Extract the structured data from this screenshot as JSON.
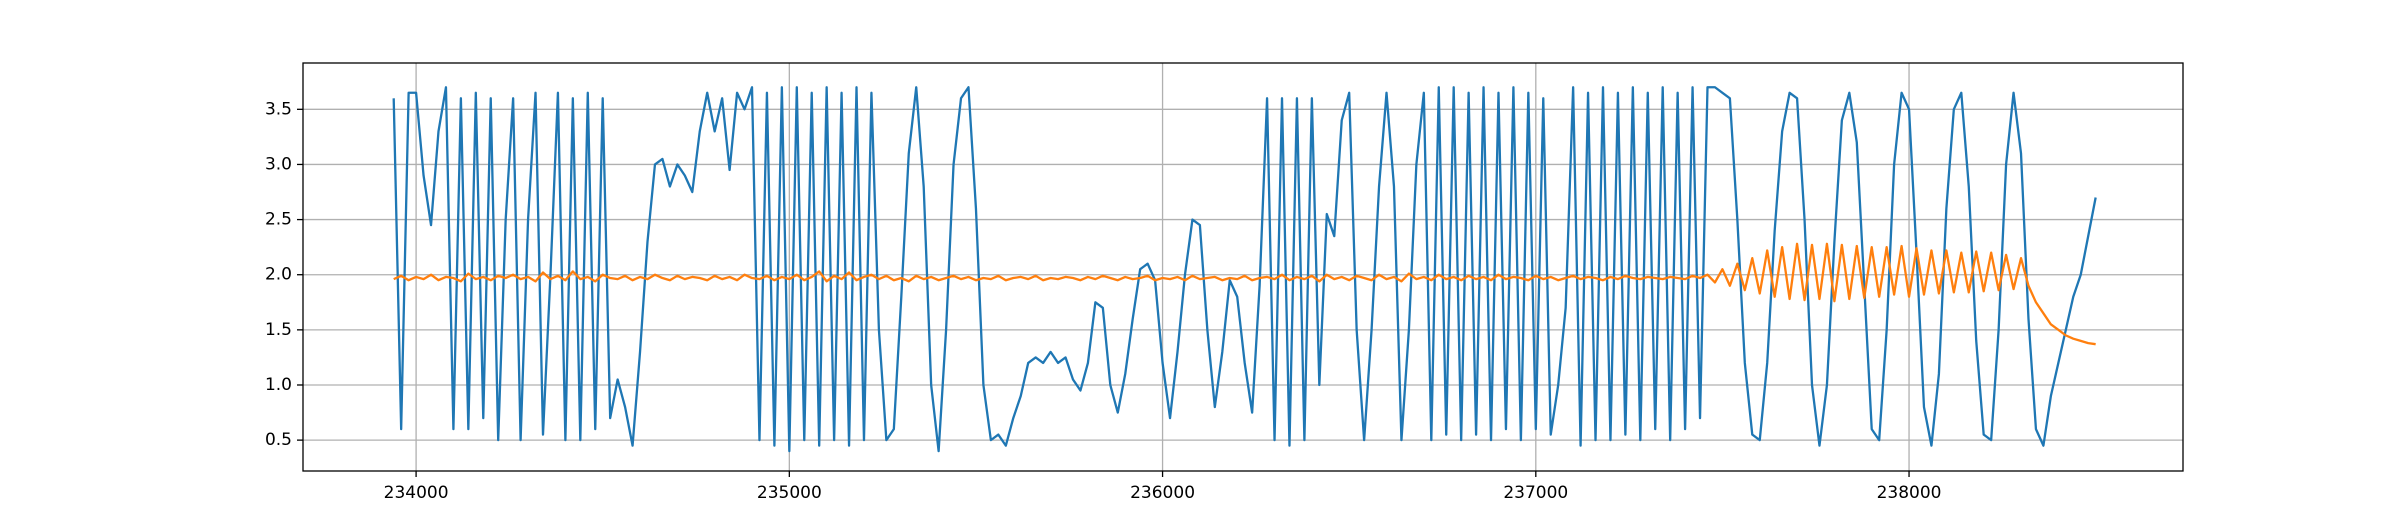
{
  "chart_data": {
    "type": "line",
    "x": [
      233940,
      233960,
      233980,
      234000,
      234020,
      234040,
      234060,
      234080,
      234100,
      234120,
      234140,
      234160,
      234180,
      234200,
      234220,
      234240,
      234260,
      234280,
      234300,
      234320,
      234340,
      234360,
      234380,
      234400,
      234420,
      234440,
      234460,
      234480,
      234500,
      234520,
      234540,
      234560,
      234580,
      234600,
      234620,
      234640,
      234660,
      234680,
      234700,
      234720,
      234740,
      234760,
      234780,
      234800,
      234820,
      234840,
      234860,
      234880,
      234900,
      234920,
      234940,
      234960,
      234980,
      235000,
      235020,
      235040,
      235060,
      235080,
      235100,
      235120,
      235140,
      235160,
      235180,
      235200,
      235220,
      235240,
      235260,
      235280,
      235300,
      235320,
      235340,
      235360,
      235380,
      235400,
      235420,
      235440,
      235460,
      235480,
      235500,
      235520,
      235540,
      235560,
      235580,
      235600,
      235620,
      235640,
      235660,
      235680,
      235700,
      235720,
      235740,
      235760,
      235780,
      235800,
      235820,
      235840,
      235860,
      235880,
      235900,
      235920,
      235940,
      235960,
      235980,
      236000,
      236020,
      236040,
      236060,
      236080,
      236100,
      236120,
      236140,
      236160,
      236180,
      236200,
      236220,
      236240,
      236260,
      236280,
      236300,
      236320,
      236340,
      236360,
      236380,
      236400,
      236420,
      236440,
      236460,
      236480,
      236500,
      236520,
      236540,
      236560,
      236580,
      236600,
      236620,
      236640,
      236660,
      236680,
      236700,
      236720,
      236740,
      236760,
      236780,
      236800,
      236820,
      236840,
      236860,
      236880,
      236900,
      236920,
      236940,
      236960,
      236980,
      237000,
      237020,
      237040,
      237060,
      237080,
      237100,
      237120,
      237140,
      237160,
      237180,
      237200,
      237220,
      237240,
      237260,
      237280,
      237300,
      237320,
      237340,
      237360,
      237380,
      237400,
      237420,
      237440,
      237460,
      237480,
      237500,
      237520,
      237540,
      237560,
      237580,
      237600,
      237620,
      237640,
      237660,
      237680,
      237700,
      237720,
      237740,
      237760,
      237780,
      237800,
      237820,
      237840,
      237860,
      237880,
      237900,
      237920,
      237940,
      237960,
      237980,
      238000,
      238020,
      238040,
      238060,
      238080,
      238100,
      238120,
      238140,
      238160,
      238180,
      238200,
      238220,
      238240,
      238260,
      238280,
      238300,
      238320,
      238340,
      238360,
      238380,
      238400,
      238420,
      238440,
      238460,
      238480,
      238500
    ],
    "series": [
      {
        "color": "#1f77b4",
        "values": [
          3.6,
          0.6,
          3.65,
          3.65,
          2.9,
          2.45,
          3.3,
          3.7,
          0.6,
          3.6,
          0.6,
          3.65,
          0.7,
          3.6,
          0.5,
          2.5,
          3.6,
          0.5,
          2.5,
          3.65,
          0.55,
          2.0,
          3.65,
          0.5,
          3.6,
          0.5,
          3.65,
          0.6,
          3.6,
          0.7,
          1.05,
          0.8,
          0.45,
          1.3,
          2.3,
          3.0,
          3.05,
          2.8,
          3.0,
          2.9,
          2.75,
          3.3,
          3.65,
          3.3,
          3.6,
          2.95,
          3.65,
          3.5,
          3.7,
          0.5,
          3.65,
          0.45,
          3.7,
          0.4,
          3.7,
          0.5,
          3.65,
          0.45,
          3.7,
          0.5,
          3.65,
          0.45,
          3.7,
          0.5,
          3.65,
          1.5,
          0.5,
          0.6,
          1.8,
          3.1,
          3.7,
          2.8,
          1.0,
          0.4,
          1.5,
          3.0,
          3.6,
          3.7,
          2.6,
          1.0,
          0.5,
          0.55,
          0.45,
          0.7,
          0.9,
          1.2,
          1.25,
          1.2,
          1.3,
          1.2,
          1.25,
          1.05,
          0.95,
          1.2,
          1.75,
          1.7,
          1.0,
          0.75,
          1.1,
          1.6,
          2.05,
          2.1,
          1.95,
          1.2,
          0.7,
          1.3,
          2.0,
          2.5,
          2.45,
          1.5,
          0.8,
          1.3,
          1.95,
          1.8,
          1.2,
          0.75,
          1.9,
          3.6,
          0.5,
          3.6,
          0.45,
          3.6,
          0.5,
          3.6,
          1.0,
          2.55,
          2.35,
          3.4,
          3.65,
          1.5,
          0.5,
          1.5,
          2.8,
          3.65,
          2.8,
          0.5,
          1.5,
          3.0,
          3.65,
          0.5,
          3.7,
          0.55,
          3.7,
          0.5,
          3.65,
          0.55,
          3.7,
          0.5,
          3.65,
          0.6,
          3.7,
          0.5,
          3.65,
          0.6,
          3.6,
          0.55,
          1.0,
          1.7,
          3.7,
          0.45,
          3.65,
          0.5,
          3.7,
          0.5,
          3.65,
          0.55,
          3.7,
          0.5,
          3.65,
          0.6,
          3.7,
          0.5,
          3.65,
          0.6,
          3.7,
          0.7,
          3.7,
          3.7,
          3.65,
          3.6,
          2.5,
          1.2,
          0.55,
          0.5,
          1.2,
          2.4,
          3.3,
          3.65,
          3.6,
          2.5,
          1.0,
          0.45,
          1.0,
          2.3,
          3.4,
          3.65,
          3.2,
          1.9,
          0.6,
          0.5,
          1.5,
          3.0,
          3.65,
          3.5,
          2.2,
          0.8,
          0.45,
          1.1,
          2.6,
          3.5,
          3.65,
          2.8,
          1.4,
          0.55,
          0.5,
          1.5,
          3.0,
          3.65,
          3.1,
          1.6,
          0.6,
          0.45,
          0.9,
          1.2,
          1.5,
          1.8,
          2.0,
          2.35,
          2.7
        ]
      },
      {
        "color": "#ff7f0e",
        "values": [
          1.96,
          1.99,
          1.95,
          1.98,
          1.96,
          2.0,
          1.95,
          1.98,
          1.97,
          1.94,
          2.01,
          1.96,
          1.98,
          1.95,
          1.99,
          1.97,
          2.0,
          1.96,
          1.98,
          1.94,
          2.02,
          1.96,
          1.99,
          1.95,
          2.03,
          1.96,
          1.98,
          1.94,
          2.0,
          1.97,
          1.96,
          1.99,
          1.95,
          1.98,
          1.96,
          2.0,
          1.97,
          1.95,
          1.99,
          1.96,
          1.98,
          1.97,
          1.95,
          1.99,
          1.96,
          1.98,
          1.95,
          2.0,
          1.97,
          1.96,
          1.99,
          1.95,
          1.98,
          1.96,
          2.0,
          1.95,
          1.98,
          2.03,
          1.94,
          1.99,
          1.96,
          2.02,
          1.95,
          1.98,
          2.0,
          1.96,
          1.99,
          1.95,
          1.97,
          1.94,
          1.99,
          1.96,
          1.98,
          1.95,
          1.97,
          1.99,
          1.96,
          1.98,
          1.95,
          1.97,
          1.96,
          1.99,
          1.95,
          1.97,
          1.98,
          1.96,
          1.99,
          1.95,
          1.97,
          1.96,
          1.98,
          1.97,
          1.95,
          1.98,
          1.96,
          1.99,
          1.97,
          1.95,
          1.98,
          1.96,
          1.97,
          1.99,
          1.95,
          1.97,
          1.96,
          1.98,
          1.95,
          1.99,
          1.96,
          1.97,
          1.98,
          1.95,
          1.97,
          1.96,
          1.99,
          1.95,
          1.97,
          1.98,
          1.96,
          2.0,
          1.95,
          1.98,
          1.96,
          1.99,
          1.94,
          2.0,
          1.96,
          1.98,
          1.95,
          1.99,
          1.97,
          1.95,
          2.0,
          1.96,
          1.98,
          1.94,
          2.01,
          1.96,
          1.98,
          1.95,
          2.0,
          1.96,
          1.98,
          1.95,
          1.99,
          1.96,
          1.98,
          1.95,
          2.0,
          1.96,
          1.98,
          1.97,
          1.95,
          1.99,
          1.96,
          1.98,
          1.95,
          1.97,
          1.99,
          1.96,
          1.98,
          1.97,
          1.95,
          1.98,
          1.96,
          1.99,
          1.97,
          1.96,
          1.98,
          1.97,
          1.96,
          1.98,
          1.97,
          1.96,
          1.99,
          1.97,
          2.0,
          1.93,
          2.05,
          1.9,
          2.1,
          1.86,
          2.15,
          1.83,
          2.22,
          1.8,
          2.25,
          1.78,
          2.28,
          1.77,
          2.27,
          1.78,
          2.28,
          1.76,
          2.27,
          1.78,
          2.26,
          1.79,
          2.25,
          1.8,
          2.25,
          1.82,
          2.26,
          1.8,
          2.24,
          1.82,
          2.22,
          1.83,
          2.22,
          1.84,
          2.2,
          1.84,
          2.21,
          1.85,
          2.2,
          1.86,
          2.18,
          1.87,
          2.15,
          1.9,
          1.75,
          1.65,
          1.55,
          1.5,
          1.45,
          1.42,
          1.4,
          1.38,
          1.37
        ]
      }
    ],
    "xlim": [
      233697,
      238734
    ],
    "ylim": [
      0.22,
      3.92
    ],
    "xticks": [
      234000,
      235000,
      236000,
      237000,
      238000
    ],
    "yticks": [
      0.5,
      {
        "value": 1,
        "label": "1.0"
      },
      1.5,
      {
        "value": 2,
        "label": "2.0"
      },
      2.5,
      {
        "value": 3,
        "label": "3.0"
      },
      3.5
    ],
    "grid": true
  }
}
